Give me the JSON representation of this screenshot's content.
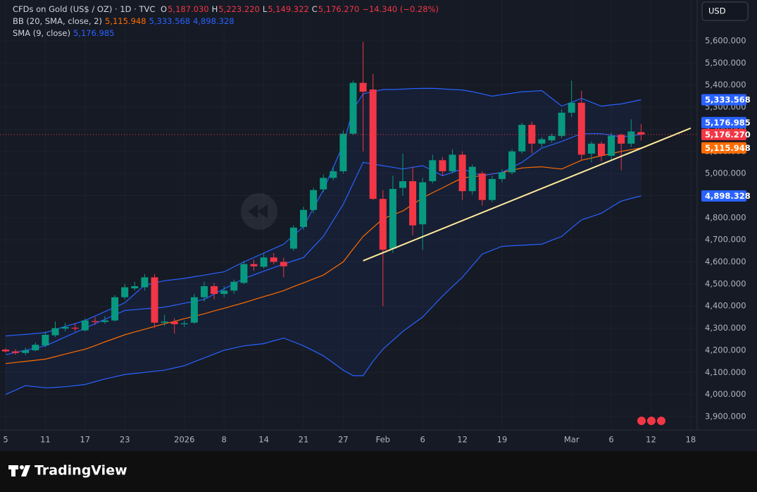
{
  "chart_data": {
    "type": "candlestick",
    "legend": {
      "symbol": "CFDs on Gold (US$ / OZ) · 1D · TVC",
      "ohlc": [
        {
          "key": "O",
          "value": "5,187.030"
        },
        {
          "key": "H",
          "value": "5,223.220"
        },
        {
          "key": "L",
          "value": "5,149.322"
        },
        {
          "key": "C",
          "value": "5,176.270"
        }
      ],
      "change": "−14.340 (−0.28%)"
    },
    "currency_button": "USD",
    "watermark": "Replay",
    "up_color": "#089981",
    "down_color": "#f23645",
    "ylim": [
      3839.4,
      5785
    ],
    "yticks": [
      {
        "value": 3900,
        "label": "3,900.000"
      },
      {
        "value": 4000,
        "label": "4,000.000"
      },
      {
        "value": 4100,
        "label": "4,100.000"
      },
      {
        "value": 4200,
        "label": "4,200.000"
      },
      {
        "value": 4300,
        "label": "4,300.000"
      },
      {
        "value": 4400,
        "label": "4,400.000"
      },
      {
        "value": 4500,
        "label": "4,500.000"
      },
      {
        "value": 4600,
        "label": "4,600.000"
      },
      {
        "value": 4700,
        "label": "4,700.000"
      },
      {
        "value": 4800,
        "label": "4,800.000"
      },
      {
        "value": 4900,
        "label": "4,900.000"
      },
      {
        "value": 5000,
        "label": "5,000.000"
      },
      {
        "value": 5100,
        "label": "5,100.000"
      },
      {
        "value": 5200,
        "label": "5,200.000"
      },
      {
        "value": 5300,
        "label": "5,300.000"
      },
      {
        "value": 5400,
        "label": "5,400.000"
      },
      {
        "value": 5500,
        "label": "5,500.000"
      },
      {
        "value": 5600,
        "label": "5,600.000"
      }
    ],
    "grid": true,
    "categories": [
      "5",
      null,
      null,
      null,
      "11",
      null,
      null,
      null,
      "17",
      null,
      null,
      null,
      "23",
      null,
      null,
      null,
      null,
      null,
      "2026",
      null,
      null,
      null,
      "8",
      null,
      null,
      null,
      "14",
      null,
      null,
      null,
      "21",
      null,
      null,
      null,
      "27",
      null,
      null,
      null,
      "Feb",
      null,
      null,
      null,
      "6",
      null,
      null,
      null,
      "12",
      null,
      null,
      null,
      "19",
      null,
      null,
      null,
      null,
      null,
      null,
      "Mar",
      null,
      null,
      null,
      "6",
      null,
      null,
      null,
      "12",
      null,
      null,
      null,
      "18"
    ],
    "open": [
      4203,
      4195,
      4188,
      4200,
      4222,
      4268,
      4298,
      4302,
      4290,
      4332,
      4328,
      4335,
      4440,
      4480,
      4485,
      4530,
      4325,
      4330,
      4318,
      4325,
      4440,
      4490,
      4455,
      4470,
      4505,
      4590,
      4578,
      4620,
      4600,
      4660,
      4758,
      4835,
      4928,
      4980,
      5010,
      5180,
      5410,
      5380,
      4885,
      4660,
      4935,
      4965,
      4770,
      4965,
      5060,
      5010,
      5085,
      4920,
      5000,
      4880,
      4975,
      5005,
      5100,
      5220,
      5135,
      5150,
      5170,
      5275,
      5320,
      5090,
      5135,
      5080,
      5175,
      5135,
      5187.03,
      null,
      null,
      null,
      null,
      null
    ],
    "high": [
      4210,
      4205,
      4212,
      4235,
      4285,
      4330,
      4325,
      4320,
      4345,
      4350,
      4355,
      4450,
      4500,
      4510,
      4545,
      4545,
      4360,
      4345,
      4335,
      4455,
      4510,
      4505,
      4490,
      4520,
      4605,
      4610,
      4640,
      4640,
      4620,
      4765,
      4850,
      4935,
      4995,
      5030,
      5195,
      5420,
      5595,
      5450,
      4925,
      4990,
      5090,
      5030,
      4980,
      5085,
      5075,
      5110,
      5100,
      5040,
      5010,
      4990,
      5020,
      5110,
      5230,
      5235,
      5165,
      5180,
      5290,
      5420,
      5375,
      5145,
      5145,
      5185,
      5180,
      5245,
      5223.22,
      null,
      null,
      null,
      null,
      null
    ],
    "low": [
      4190,
      4180,
      4178,
      4195,
      4215,
      4260,
      4285,
      4285,
      4285,
      4315,
      4320,
      4330,
      4430,
      4470,
      4470,
      4300,
      4310,
      4275,
      4305,
      4320,
      4420,
      4430,
      4440,
      4455,
      4500,
      4560,
      4570,
      4590,
      4530,
      4650,
      4745,
      4820,
      4915,
      4970,
      5000,
      5175,
      5100,
      4880,
      4400,
      4640,
      4900,
      4720,
      4655,
      4955,
      4990,
      5000,
      4880,
      4905,
      4855,
      4870,
      4960,
      4995,
      5090,
      5090,
      5120,
      5140,
      5160,
      5255,
      5060,
      5050,
      5055,
      5060,
      5015,
      5120,
      5149.322,
      null,
      null,
      null,
      null,
      null
    ],
    "close": [
      4195,
      4188,
      4200,
      4225,
      4270,
      4300,
      4305,
      4298,
      4335,
      4328,
      4335,
      4440,
      4485,
      4490,
      4530,
      4325,
      4330,
      4318,
      4322,
      4440,
      4490,
      4455,
      4470,
      4510,
      4590,
      4580,
      4620,
      4600,
      4580,
      4755,
      4835,
      4925,
      4980,
      5010,
      5180,
      5410,
      5370,
      4885,
      4655,
      4930,
      4965,
      4765,
      4960,
      5060,
      5010,
      5085,
      4920,
      5030,
      4880,
      4975,
      5005,
      5100,
      5220,
      5135,
      5155,
      5170,
      5275,
      5320,
      5085,
      5135,
      5080,
      5170,
      5135,
      5190,
      5176.27,
      null,
      null,
      null,
      null,
      null
    ],
    "close_label": "5,176.270",
    "indicators": [
      {
        "name": "BB (20, SMA, close, 2)",
        "band_fill": "rgba(41,98,255,0.07)",
        "lines": [
          {
            "color": "#ff6d00",
            "last_label": "5,115.948",
            "values": [
              4140,
              4145,
              4150,
              4155,
              4160,
              4171,
              4183,
              4194,
              4205,
              4221,
              4238,
              4254,
              4270,
              4283,
              4295,
              4308,
              4320,
              4331,
              4343,
              4354,
              4365,
              4378,
              4390,
              4403,
              4415,
              4429,
              4443,
              4456,
              4470,
              4488,
              4505,
              4523,
              4540,
              4570,
              4600,
              4658,
              4715,
              4755,
              4795,
              4813,
              4830,
              4860,
              4890,
              4913,
              4935,
              4958,
              4980,
              4985,
              4990,
              4998,
              5005,
              5015,
              5025,
              5028,
              5030,
              5025,
              5020,
              5040,
              5060,
              5070,
              5080,
              5090,
              5100,
              5108,
              5115.948,
              null,
              null,
              null,
              null,
              null
            ]
          },
          {
            "color": "#2962ff",
            "last_label": "5,333.568",
            "values": [
              4265,
              4269,
              4272,
              4276,
              4280,
              4294,
              4308,
              4321,
              4335,
              4355,
              4375,
              4395,
              4415,
              4455,
              4495,
              4505,
              4515,
              4520,
              4525,
              4533,
              4540,
              4548,
              4555,
              4578,
              4600,
              4620,
              4640,
              4660,
              4680,
              4720,
              4760,
              4843,
              4925,
              5028,
              5130,
              5290,
              5360,
              5370,
              5380,
              5380,
              5382,
              5384,
              5385,
              5385,
              5383,
              5380,
              5378,
              5370,
              5360,
              5350,
              5357,
              5363,
              5370,
              5372,
              5375,
              5340,
              5305,
              5322,
              5340,
              5322,
              5305,
              5310,
              5315,
              5324,
              5333.568,
              null,
              null,
              null,
              null,
              null
            ]
          },
          {
            "color": "#2962ff",
            "last_label": "4,898.328",
            "values": [
              4000,
              4020,
              4040,
              4035,
              4030,
              4032,
              4035,
              4040,
              4045,
              4058,
              4070,
              4080,
              4090,
              4095,
              4100,
              4105,
              4110,
              4120,
              4130,
              4148,
              4165,
              4183,
              4200,
              4210,
              4220,
              4225,
              4230,
              4243,
              4255,
              4238,
              4220,
              4198,
              4175,
              4143,
              4110,
              4085,
              4085,
              4150,
              4205,
              4245,
              4285,
              4318,
              4350,
              4398,
              4445,
              4488,
              4530,
              4583,
              4635,
              4653,
              4670,
              4673,
              4675,
              4678,
              4680,
              4698,
              4715,
              4753,
              4790,
              4805,
              4820,
              4848,
              4875,
              4887,
              4898.328,
              null,
              null,
              null,
              null,
              null
            ]
          }
        ]
      },
      {
        "name": "SMA (9, close)",
        "lines": [
          {
            "color": "#2962ff",
            "last_label": "5,176.985",
            "values": [
              4180,
              4190,
              4200,
              4210,
              4220,
              4240,
              4260,
              4280,
              4300,
              4320,
              4340,
              4360,
              4380,
              4384,
              4388,
              4391,
              4395,
              4404,
              4413,
              4421,
              4430,
              4454,
              4478,
              4501,
              4525,
              4541,
              4558,
              4574,
              4590,
              4605,
              4620,
              4668,
              4715,
              4788,
              4860,
              4955,
              5050,
              5043,
              5035,
              5028,
              5020,
              5028,
              5035,
              5013,
              4990,
              5005,
              5020,
              5005,
              4990,
              4998,
              5005,
              5028,
              5050,
              5083,
              5115,
              5130,
              5145,
              5163,
              5180,
              5180,
              5180,
              5173,
              5165,
              5171,
              5176.985,
              null,
              null,
              null,
              null,
              null
            ]
          }
        ]
      }
    ],
    "trendline": {
      "color": "#ffeb9b",
      "x": [
        36,
        69
      ],
      "values": [
        4605,
        5205
      ]
    }
  },
  "brand": "TradingView"
}
